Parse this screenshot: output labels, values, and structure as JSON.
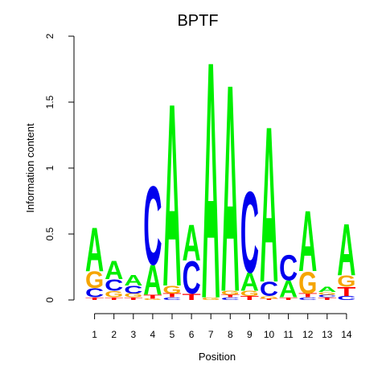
{
  "chart_data": {
    "type": "sequence-logo",
    "title": "BPTF",
    "xlabel": "Position",
    "ylabel": "Information content",
    "ylim": [
      0,
      2
    ],
    "y_ticks": [
      "0",
      "0.5",
      "1",
      "1.5",
      "2"
    ],
    "positions": [
      "1",
      "2",
      "3",
      "4",
      "5",
      "6",
      "7",
      "8",
      "9",
      "10",
      "11",
      "12",
      "13",
      "14"
    ],
    "colors": {
      "A": "#00ee00",
      "C": "#0000ee",
      "G": "#f5a500",
      "T": "#ff0000"
    },
    "stacks": [
      [
        {
          "l": "T",
          "v": 0.02
        },
        {
          "l": "C",
          "v": 0.07
        },
        {
          "l": "G",
          "v": 0.13
        },
        {
          "l": "A",
          "v": 0.34
        }
      ],
      [
        {
          "l": "T",
          "v": 0.02
        },
        {
          "l": "G",
          "v": 0.05
        },
        {
          "l": "C",
          "v": 0.09
        },
        {
          "l": "A",
          "v": 0.14
        }
      ],
      [
        {
          "l": "T",
          "v": 0.02
        },
        {
          "l": "G",
          "v": 0.03
        },
        {
          "l": "C",
          "v": 0.06
        },
        {
          "l": "A",
          "v": 0.08
        }
      ],
      [
        {
          "l": "G",
          "v": 0.01
        },
        {
          "l": "T",
          "v": 0.03
        },
        {
          "l": "A",
          "v": 0.23
        },
        {
          "l": "C",
          "v": 0.61
        }
      ],
      [
        {
          "l": "C",
          "v": 0.02
        },
        {
          "l": "T",
          "v": 0.03
        },
        {
          "l": "G",
          "v": 0.06
        },
        {
          "l": "A",
          "v": 1.42
        }
      ],
      [
        {
          "l": "T",
          "v": 0.05
        },
        {
          "l": "C",
          "v": 0.25
        },
        {
          "l": "A",
          "v": 0.28
        }
      ],
      [
        {
          "l": "G",
          "v": 0.02
        },
        {
          "l": "A",
          "v": 1.84
        }
      ],
      [
        {
          "l": "C",
          "v": 0.02
        },
        {
          "l": "T",
          "v": 0.02
        },
        {
          "l": "G",
          "v": 0.03
        },
        {
          "l": "A",
          "v": 1.61
        }
      ],
      [
        {
          "l": "T",
          "v": 0.03
        },
        {
          "l": "G",
          "v": 0.04
        },
        {
          "l": "A",
          "v": 0.14
        },
        {
          "l": "C",
          "v": 0.63
        }
      ],
      [
        {
          "l": "T",
          "v": 0.01
        },
        {
          "l": "G",
          "v": 0.02
        },
        {
          "l": "C",
          "v": 0.11
        },
        {
          "l": "A",
          "v": 1.21
        }
      ],
      [
        {
          "l": "T",
          "v": 0.02
        },
        {
          "l": "A",
          "v": 0.13
        },
        {
          "l": "C",
          "v": 0.2
        }
      ],
      [
        {
          "l": "C",
          "v": 0.02
        },
        {
          "l": "T",
          "v": 0.03
        },
        {
          "l": "G",
          "v": 0.17
        },
        {
          "l": "A",
          "v": 0.47
        }
      ],
      [
        {
          "l": "T",
          "v": 0.02
        },
        {
          "l": "C",
          "v": 0.02
        },
        {
          "l": "G",
          "v": 0.02
        },
        {
          "l": "A",
          "v": 0.04
        }
      ],
      [
        {
          "l": "C",
          "v": 0.03
        },
        {
          "l": "T",
          "v": 0.07
        },
        {
          "l": "G",
          "v": 0.09
        },
        {
          "l": "A",
          "v": 0.4
        }
      ]
    ]
  }
}
